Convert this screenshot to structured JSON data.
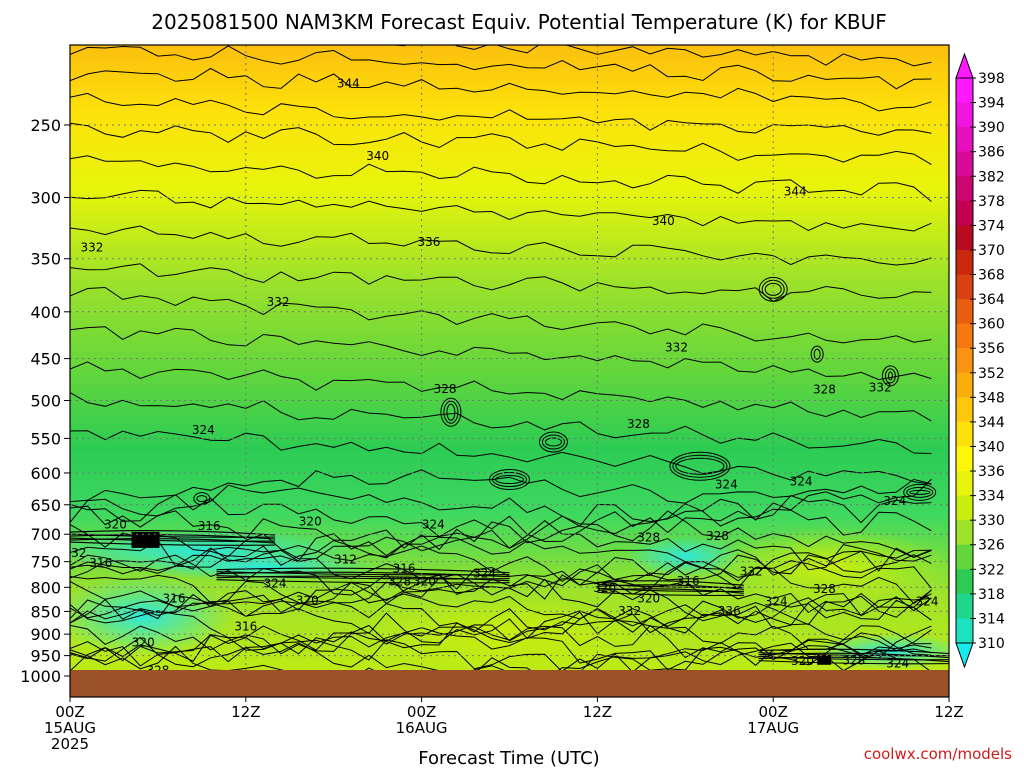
{
  "chart_data": {
    "type": "heatmap",
    "title": "2025081500 NAM3KM Forecast Equiv. Potential Temperature (K) for KBUF",
    "xlabel": "Forecast Time (UTC)",
    "ylabel": "",
    "x_ticks": [
      {
        "hour": 0,
        "lines": [
          "00Z",
          "15AUG",
          "2025"
        ]
      },
      {
        "hour": 12,
        "lines": [
          "12Z"
        ]
      },
      {
        "hour": 24,
        "lines": [
          "00Z",
          "16AUG"
        ]
      },
      {
        "hour": 36,
        "lines": [
          "12Z"
        ]
      },
      {
        "hour": 48,
        "lines": [
          "00Z",
          "17AUG"
        ]
      },
      {
        "hour": 60,
        "lines": [
          "12Z"
        ]
      }
    ],
    "xlim": [
      0,
      60
    ],
    "y_ticks": [
      250,
      300,
      350,
      400,
      450,
      500,
      550,
      600,
      650,
      700,
      750,
      800,
      850,
      900,
      950,
      1000
    ],
    "ylim_hPa": [
      200,
      1030
    ],
    "y_scale": "log-pressure",
    "grid": true,
    "colorbar": {
      "units": "K",
      "ticks": [
        398,
        394,
        390,
        386,
        382,
        378,
        374,
        370,
        368,
        364,
        360,
        356,
        352,
        348,
        344,
        340,
        336,
        334,
        330,
        326,
        322,
        318,
        314,
        310
      ],
      "colors": [
        "#ff19ff",
        "#f314e0",
        "#e60fbe",
        "#d90a99",
        "#cc0573",
        "#c2004f",
        "#ba0a21",
        "#c9280c",
        "#d94210",
        "#ea5e10",
        "#f57810",
        "#fa9410",
        "#fbad0e",
        "#fcc70c",
        "#fde10a",
        "#fdf80a",
        "#e8f50a",
        "#c8ee0e",
        "#9ee22a",
        "#63d63c",
        "#2ccc54",
        "#1ed68c",
        "#1ce2c0",
        "#16ecec"
      ],
      "extend": "both"
    },
    "contour_labels": [
      {
        "text": "344",
        "hour": 19,
        "p": 225
      },
      {
        "text": "340",
        "hour": 21,
        "p": 270
      },
      {
        "text": "340",
        "hour": 40.5,
        "p": 318
      },
      {
        "text": "344",
        "hour": 49.5,
        "p": 295
      },
      {
        "text": "336",
        "hour": 24.5,
        "p": 335
      },
      {
        "text": "332",
        "hour": 1.5,
        "p": 340
      },
      {
        "text": "332",
        "hour": 14.2,
        "p": 390
      },
      {
        "text": "332",
        "hour": 41.4,
        "p": 437
      },
      {
        "text": "328",
        "hour": 25.6,
        "p": 485
      },
      {
        "text": "328",
        "hour": 51.5,
        "p": 486
      },
      {
        "text": "332",
        "hour": 55.3,
        "p": 483
      },
      {
        "text": "328",
        "hour": 38.8,
        "p": 530
      },
      {
        "text": "324",
        "hour": 9.1,
        "p": 538
      },
      {
        "text": "324",
        "hour": 44.8,
        "p": 617
      },
      {
        "text": "324",
        "hour": 49.9,
        "p": 612
      },
      {
        "text": "324",
        "hour": 56.3,
        "p": 643
      },
      {
        "text": "320",
        "hour": 3.1,
        "p": 682
      },
      {
        "text": "316",
        "hour": 9.5,
        "p": 685
      },
      {
        "text": "320",
        "hour": 16.4,
        "p": 677
      },
      {
        "text": "324",
        "hour": 24.8,
        "p": 682
      },
      {
        "text": "328",
        "hour": 39.5,
        "p": 705
      },
      {
        "text": "328",
        "hour": 44.2,
        "p": 702
      },
      {
        "text": "316",
        "hour": 2.1,
        "p": 752
      },
      {
        "text": "312",
        "hour": 18.8,
        "p": 745
      },
      {
        "text": "316",
        "hour": 22.8,
        "p": 762
      },
      {
        "text": "324",
        "hour": 28.3,
        "p": 772
      },
      {
        "text": "316",
        "hour": 42.2,
        "p": 786
      },
      {
        "text": "332",
        "hour": 46.5,
        "p": 768
      },
      {
        "text": "324",
        "hour": 14.0,
        "p": 791
      },
      {
        "text": "328",
        "hour": 22.5,
        "p": 787
      },
      {
        "text": "320",
        "hour": 24.2,
        "p": 787
      },
      {
        "text": "320",
        "hour": 36.5,
        "p": 800
      },
      {
        "text": "328",
        "hour": 51.5,
        "p": 802
      },
      {
        "text": "316",
        "hour": 7.1,
        "p": 822
      },
      {
        "text": "320",
        "hour": 16.2,
        "p": 826
      },
      {
        "text": "320",
        "hour": 39.5,
        "p": 822
      },
      {
        "text": "324",
        "hour": 48.2,
        "p": 828
      },
      {
        "text": "324",
        "hour": 58.5,
        "p": 828
      },
      {
        "text": "332",
        "hour": 38.2,
        "p": 848
      },
      {
        "text": "336",
        "hour": 45.0,
        "p": 848
      },
      {
        "text": "316",
        "hour": 12.0,
        "p": 882
      },
      {
        "text": "320",
        "hour": 5.0,
        "p": 918
      },
      {
        "text": "320",
        "hour": 50.0,
        "p": 962
      },
      {
        "text": "328",
        "hour": 53.5,
        "p": 960
      },
      {
        "text": "324",
        "hour": 56.5,
        "p": 968
      },
      {
        "text": "328",
        "hour": 6.0,
        "p": 985
      },
      {
        "text": "32",
        "hour": 0.6,
        "p": 733
      }
    ],
    "ground": {
      "p_top": 985,
      "color": "#9c5128"
    },
    "credit": "coolwx.com/models"
  }
}
